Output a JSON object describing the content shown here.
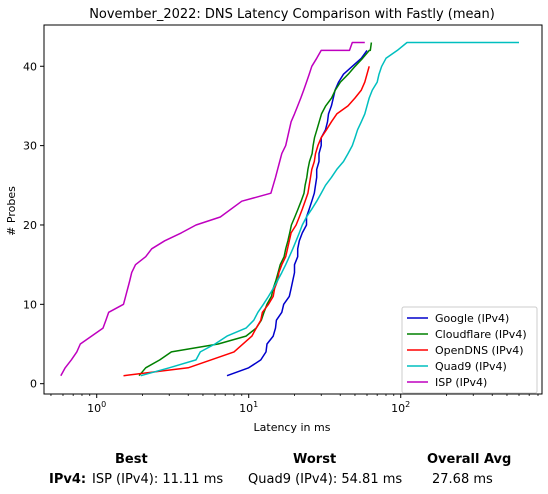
{
  "chart_data": {
    "type": "line",
    "title": "November_2022: DNS Latency Comparison with Fastly (mean)",
    "xlabel": "Latency in ms",
    "ylabel": "# Probes",
    "xscale": "log",
    "xlim": [
      0.45,
      850
    ],
    "ylim": [
      -1.3,
      45.2
    ],
    "xticks": [
      {
        "value": 1,
        "base": "10",
        "exp": "0"
      },
      {
        "value": 10,
        "base": "10",
        "exp": "1"
      },
      {
        "value": 100,
        "base": "10",
        "exp": "2"
      }
    ],
    "yticks": [
      0,
      10,
      20,
      30,
      40
    ],
    "legend_position": "lower-right",
    "grid": false,
    "series": [
      {
        "name": "Google (IPv4)",
        "color": "#0000cc",
        "x": [
          7.2,
          10,
          12,
          13,
          13.2,
          14.5,
          15,
          15.2,
          16.5,
          17,
          18.5,
          19,
          19.5,
          20,
          20,
          21,
          21,
          21.5,
          22.5,
          24,
          24,
          25,
          26,
          27,
          27.5,
          28,
          28,
          29,
          29,
          30,
          30,
          32,
          33,
          33.5,
          35,
          36,
          37,
          39,
          42,
          48,
          55,
          60
        ],
        "y": [
          1,
          2,
          3,
          4,
          5,
          6,
          7,
          8,
          9,
          10,
          11,
          12,
          13,
          14,
          15,
          16,
          17,
          18,
          19,
          20,
          21,
          22,
          23,
          24,
          25,
          26,
          27,
          28,
          29,
          30,
          31,
          32,
          33,
          34,
          35,
          36,
          37,
          38,
          39,
          40,
          41,
          42
        ]
      },
      {
        "name": "Cloudflare (IPv4)",
        "color": "#008000",
        "x": [
          1.9,
          2.1,
          2.6,
          3.1,
          6.3,
          9.6,
          11.2,
          12.1,
          12.6,
          13.2,
          14.1,
          14.5,
          15.1,
          15.6,
          16.1,
          17.1,
          17.5,
          18.1,
          18.6,
          19.1,
          20.1,
          21.1,
          22.1,
          23.1,
          23.5,
          24.1,
          24.5,
          25.1,
          26.1,
          26.5,
          27.1,
          28.1,
          29.1,
          30.1,
          32.1,
          35.1,
          37.1,
          40.1,
          45.1,
          50.1,
          56.1,
          62.1,
          63.1,
          64.1
        ],
        "y": [
          1,
          2,
          3,
          4,
          5,
          6,
          7,
          8,
          9,
          10,
          11,
          12,
          13,
          14,
          15,
          16,
          17,
          18,
          19,
          20,
          21,
          22,
          23,
          24,
          25,
          26,
          27,
          28,
          29,
          30,
          31,
          32,
          33,
          34,
          35,
          36,
          37,
          38,
          39,
          40,
          41,
          42,
          42,
          43
        ]
      },
      {
        "name": "OpenDNS (IPv4)",
        "color": "#ff0000",
        "x": [
          1.5,
          4,
          8,
          10.5,
          11.2,
          12,
          12.3,
          13.5,
          14.5,
          14.8,
          15.5,
          15.8,
          16.5,
          17.5,
          18,
          18.5,
          19,
          20.5,
          21.5,
          22.5,
          23.5,
          24.5,
          25,
          25.5,
          26,
          27,
          27.5,
          28.5,
          30,
          32.5,
          35,
          38,
          45,
          50,
          55,
          58,
          60,
          62
        ],
        "y": [
          1,
          2,
          4,
          6,
          7,
          8,
          9,
          10,
          11,
          12,
          13,
          14,
          15,
          16,
          17,
          18,
          19,
          20,
          21,
          22,
          23,
          24,
          25,
          26,
          27,
          28,
          29,
          30,
          31,
          32,
          33,
          34,
          35,
          36,
          37,
          38,
          39,
          40
        ]
      },
      {
        "name": "Quad9 (IPv4)",
        "color": "#00bfbf",
        "x": [
          1.95,
          3,
          4.5,
          4.8,
          6,
          7.2,
          9.6,
          10.8,
          11.5,
          12.5,
          13.5,
          14.5,
          15.5,
          16.5,
          17.5,
          18.5,
          19.5,
          20.5,
          21.5,
          22.5,
          24,
          26,
          28,
          30,
          32,
          35,
          38,
          42,
          45,
          48,
          50,
          52,
          55,
          58,
          60,
          62,
          65,
          70,
          72,
          75,
          80,
          95,
          110,
          600
        ],
        "y": [
          1,
          2,
          3,
          4,
          5,
          6,
          7,
          8,
          9,
          10,
          11,
          12,
          13,
          14,
          15,
          16,
          17,
          18,
          19,
          20,
          21,
          22,
          23,
          24,
          25,
          26,
          27,
          28,
          29,
          30,
          31,
          32,
          33,
          34,
          35,
          36,
          37,
          38,
          39,
          40,
          41,
          42,
          43,
          43
        ]
      },
      {
        "name": "ISP (IPv4)",
        "color": "#bf00bf",
        "x": [
          0.58,
          0.62,
          0.68,
          0.74,
          0.78,
          1.1,
          1.15,
          1.2,
          1.5,
          1.55,
          1.6,
          1.65,
          1.7,
          1.8,
          2.1,
          2.3,
          2.8,
          3.6,
          4.5,
          6.5,
          9,
          14,
          14.5,
          15,
          15.5,
          16,
          16.5,
          17.5,
          18,
          18.5,
          19,
          20,
          21,
          22,
          23,
          24,
          25,
          26,
          28,
          30,
          35,
          42,
          46,
          48,
          50,
          55,
          58
        ],
        "y": [
          1,
          2,
          3,
          4,
          5,
          7,
          8,
          9,
          10,
          11,
          12,
          13,
          14,
          15,
          16,
          17,
          18,
          19,
          20,
          21,
          23,
          24,
          25,
          26,
          27,
          28,
          29,
          30,
          31,
          32,
          33,
          34,
          35,
          36,
          37,
          38,
          39,
          40,
          41,
          42,
          42,
          42,
          42,
          43,
          43,
          43,
          43
        ]
      }
    ]
  },
  "summary": {
    "best_header": "Best",
    "worst_header": "Worst",
    "avg_header": "Overall Avg",
    "row_label": "IPv4",
    "best_value": "ISP (IPv4): 11.11 ms",
    "worst_value": "Quad9 (IPv4): 54.81 ms",
    "avg_value": "27.68 ms"
  }
}
